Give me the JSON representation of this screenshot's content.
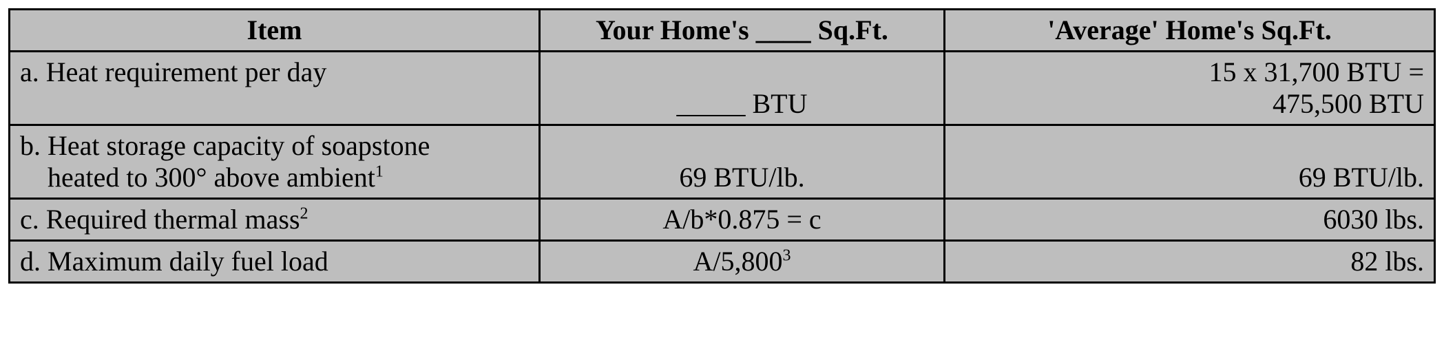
{
  "table": {
    "background_color": "#bebebe",
    "border_color": "#000000",
    "font_family": "Times New Roman",
    "font_size_pt": 30,
    "column_widths_pct": [
      37.2,
      28.4,
      34.4
    ],
    "headers": {
      "item": "Item",
      "your": "Your  Home's ____  Sq.Ft.",
      "avg": "'Average' Home's Sq.Ft."
    },
    "rows": {
      "a": {
        "item": "a. Heat requirement  per day",
        "your": "_____ BTU",
        "avg_line1": "15 x 31,700 BTU =",
        "avg_line2": "475,500 BTU"
      },
      "b": {
        "item_line1": "b. Heat storage capacity of soapstone",
        "item_line2": "heated to 300° above ambient",
        "item_sup": "1",
        "your": "69 BTU/lb.",
        "avg": "69 BTU/lb."
      },
      "c": {
        "item": "c. Required  thermal  mass",
        "item_sup": "2",
        "your": "A/b*0.875 = c",
        "avg": "6030 lbs."
      },
      "d": {
        "item": "d. Maximum  daily  fuel  load",
        "your": "A/5,800",
        "your_sup": "3",
        "avg": "82 lbs."
      }
    }
  }
}
